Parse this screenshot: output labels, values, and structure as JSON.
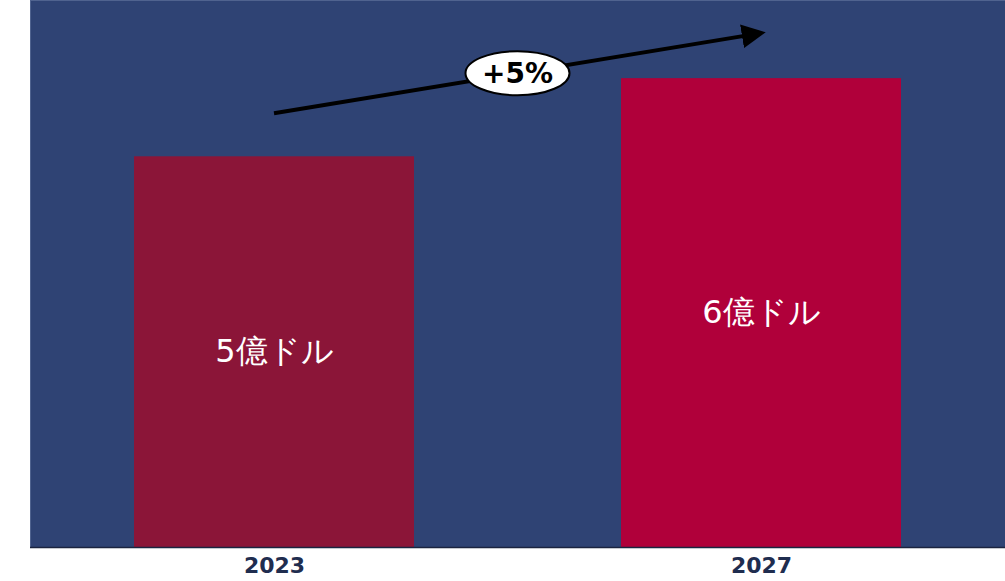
{
  "chart_data": {
    "type": "bar",
    "categories": [
      "2023",
      "2027"
    ],
    "values": [
      5,
      6
    ],
    "value_labels": [
      "5億ドル",
      "6億ドル"
    ],
    "colors": [
      "#8b1538",
      "#b0003a"
    ],
    "ylim": [
      0,
      7
    ],
    "data_labels": true,
    "tick_labels": "x",
    "grid": false,
    "annotations": [
      "+5%"
    ]
  }
}
